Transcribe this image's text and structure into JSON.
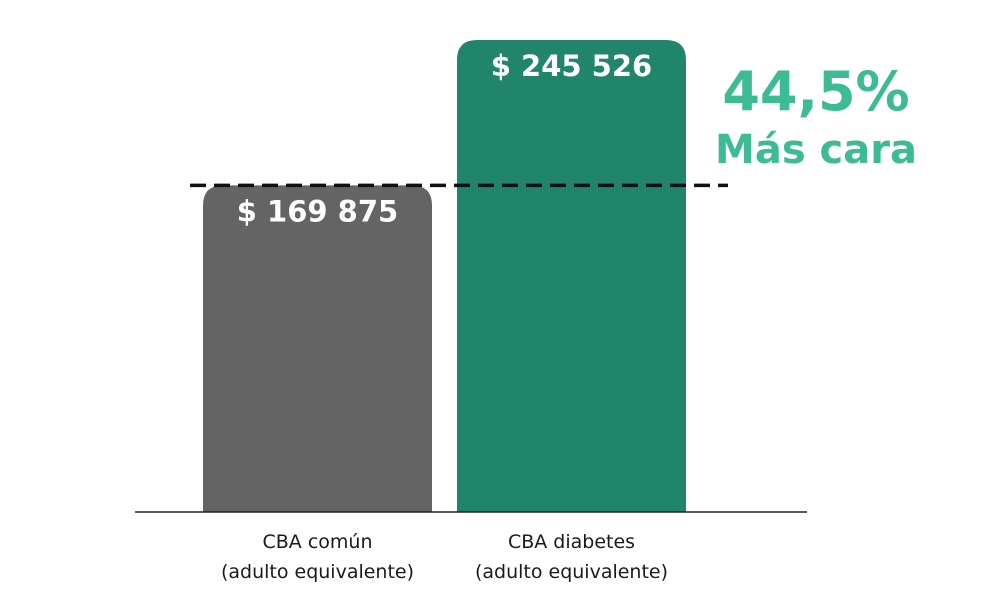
{
  "chart_data": {
    "type": "bar",
    "categories": [
      [
        "CBA común",
        "(adulto equivalente)"
      ],
      [
        "CBA diabetes",
        "(adulto equivalente)"
      ]
    ],
    "values": [
      169875,
      245526
    ],
    "data_labels": [
      "$ 169 875",
      "$ 245 526"
    ],
    "colors": [
      "#646464",
      "#21856c"
    ],
    "reference_line": {
      "value": 169875,
      "style": "dashed",
      "color": "#111111"
    },
    "annotation": {
      "value_text": "44,5%",
      "subtitle_text": "Más cara",
      "color": "#3dbb94",
      "placement": "right of tallest bar"
    },
    "title": "",
    "xlabel": "",
    "ylabel": "",
    "ylim": [
      0,
      245526
    ],
    "grid": false,
    "legend": "none"
  }
}
